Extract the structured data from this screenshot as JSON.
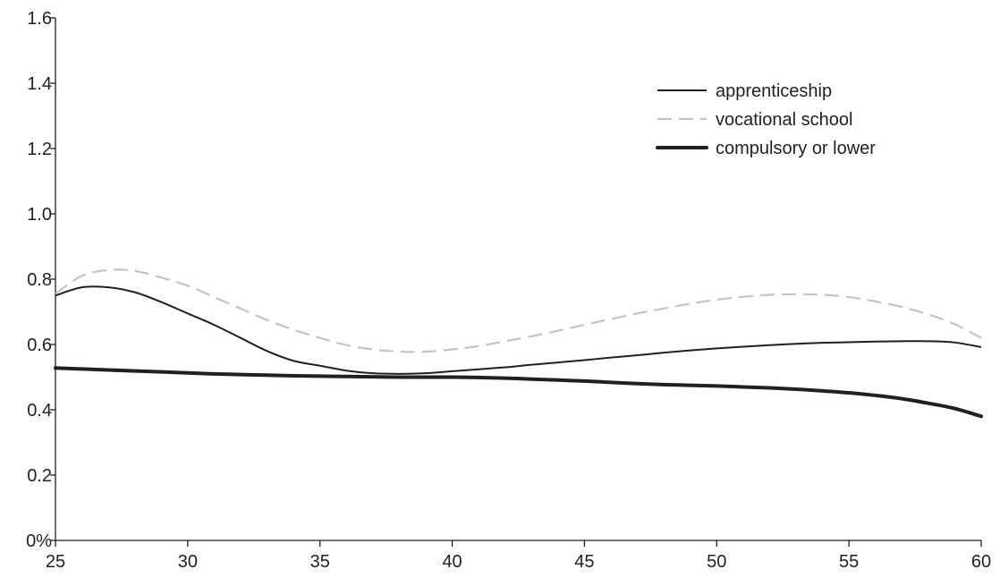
{
  "chart_data": {
    "type": "line",
    "title": "",
    "xlabel": "",
    "ylabel": "",
    "xlim": [
      25,
      60
    ],
    "ylim": [
      0,
      1.6
    ],
    "x_ticks": [
      25,
      30,
      35,
      40,
      45,
      50,
      55,
      60
    ],
    "x_tick_labels": [
      "25",
      "30",
      "35",
      "40",
      "45",
      "50",
      "55",
      "60"
    ],
    "y_ticks": [
      0,
      0.2,
      0.4,
      0.6,
      0.8,
      1.0,
      1.2,
      1.4,
      1.6
    ],
    "y_tick_labels": [
      "0%",
      "0.2",
      "0.4",
      "0.6",
      "0.8",
      "1.0",
      "1.2",
      "1.4",
      "1.6"
    ],
    "grid": false,
    "legend_position": "top-right",
    "series": [
      {
        "name": "apprenticeship",
        "style": "solid-thin",
        "color": "#231f20",
        "x": [
          25,
          26,
          27,
          28,
          29,
          30,
          31,
          32,
          33,
          34,
          35,
          36,
          37,
          38,
          39,
          40,
          41,
          42,
          43,
          44,
          45,
          46,
          47,
          48,
          49,
          50,
          51,
          52,
          53,
          54,
          55,
          56,
          57,
          58,
          59,
          60
        ],
        "y": [
          0.75,
          0.775,
          0.775,
          0.76,
          0.73,
          0.695,
          0.66,
          0.62,
          0.58,
          0.55,
          0.535,
          0.52,
          0.512,
          0.51,
          0.512,
          0.518,
          0.524,
          0.53,
          0.538,
          0.545,
          0.552,
          0.56,
          0.567,
          0.575,
          0.582,
          0.588,
          0.593,
          0.598,
          0.602,
          0.605,
          0.607,
          0.609,
          0.61,
          0.61,
          0.606,
          0.592
        ]
      },
      {
        "name": "vocational school",
        "style": "dashed",
        "color": "#c4c4c4",
        "x": [
          25,
          26,
          27,
          28,
          29,
          30,
          31,
          32,
          33,
          34,
          35,
          36,
          37,
          38,
          39,
          40,
          41,
          42,
          43,
          44,
          45,
          46,
          47,
          48,
          49,
          50,
          51,
          52,
          53,
          54,
          55,
          56,
          57,
          58,
          59,
          60
        ],
        "y": [
          0.755,
          0.81,
          0.828,
          0.825,
          0.805,
          0.78,
          0.745,
          0.71,
          0.675,
          0.645,
          0.62,
          0.598,
          0.585,
          0.578,
          0.578,
          0.585,
          0.595,
          0.61,
          0.625,
          0.642,
          0.66,
          0.678,
          0.695,
          0.71,
          0.725,
          0.737,
          0.746,
          0.752,
          0.754,
          0.752,
          0.745,
          0.732,
          0.715,
          0.692,
          0.662,
          0.62
        ]
      },
      {
        "name": "compulsory or lower",
        "style": "solid-thick",
        "color": "#231f20",
        "x": [
          25,
          26,
          27,
          28,
          29,
          30,
          31,
          32,
          33,
          34,
          35,
          36,
          37,
          38,
          39,
          40,
          41,
          42,
          43,
          44,
          45,
          46,
          47,
          48,
          49,
          50,
          51,
          52,
          53,
          54,
          55,
          56,
          57,
          58,
          59,
          60
        ],
        "y": [
          0.528,
          0.525,
          0.522,
          0.519,
          0.516,
          0.513,
          0.51,
          0.508,
          0.506,
          0.504,
          0.503,
          0.502,
          0.501,
          0.5,
          0.5,
          0.5,
          0.499,
          0.497,
          0.494,
          0.491,
          0.488,
          0.484,
          0.48,
          0.477,
          0.475,
          0.473,
          0.47,
          0.467,
          0.463,
          0.458,
          0.452,
          0.444,
          0.434,
          0.42,
          0.404,
          0.38
        ]
      }
    ]
  }
}
